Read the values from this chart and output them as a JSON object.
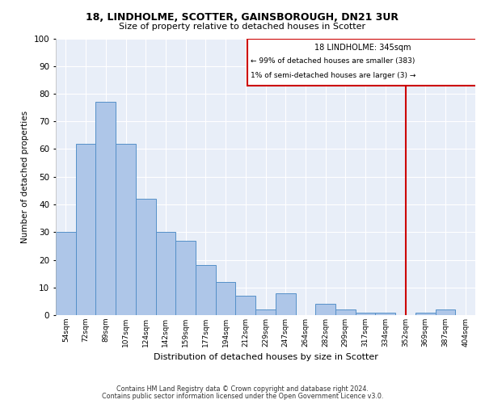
{
  "title1": "18, LINDHOLME, SCOTTER, GAINSBOROUGH, DN21 3UR",
  "title2": "Size of property relative to detached houses in Scotter",
  "xlabel": "Distribution of detached houses by size in Scotter",
  "ylabel": "Number of detached properties",
  "bar_color": "#aec6e8",
  "bar_edge_color": "#5590c8",
  "categories": [
    "54sqm",
    "72sqm",
    "89sqm",
    "107sqm",
    "124sqm",
    "142sqm",
    "159sqm",
    "177sqm",
    "194sqm",
    "212sqm",
    "229sqm",
    "247sqm",
    "264sqm",
    "282sqm",
    "299sqm",
    "317sqm",
    "334sqm",
    "352sqm",
    "369sqm",
    "387sqm",
    "404sqm"
  ],
  "values": [
    30,
    62,
    77,
    62,
    42,
    30,
    27,
    18,
    12,
    7,
    2,
    8,
    0,
    4,
    2,
    1,
    1,
    0,
    1,
    2,
    0
  ],
  "vline_x": 17,
  "vline_color": "#cc0000",
  "annotation_title": "18 LINDHOLME: 345sqm",
  "annotation_line1": "← 99% of detached houses are smaller (383)",
  "annotation_line2": "1% of semi-detached houses are larger (3) →",
  "annotation_box_color": "#cc0000",
  "ylim": [
    0,
    100
  ],
  "yticks": [
    0,
    10,
    20,
    30,
    40,
    50,
    60,
    70,
    80,
    90,
    100
  ],
  "footer1": "Contains HM Land Registry data © Crown copyright and database right 2024.",
  "footer2": "Contains public sector information licensed under the Open Government Licence v3.0.",
  "bg_color": "#e8eef8"
}
